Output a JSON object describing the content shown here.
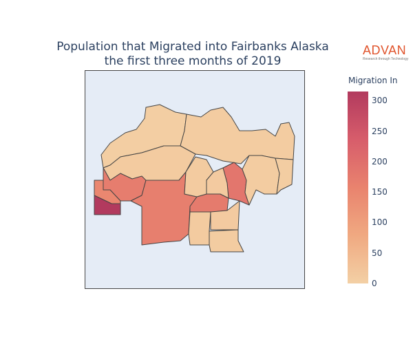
{
  "title_line1": "Population that Migrated into Fairbanks Alaska",
  "title_line2": "the first three months of 2019",
  "logo": {
    "word": "ADVAN",
    "tagline": "Research through Technology"
  },
  "colorbar": {
    "title": "Migration In",
    "ticks": [
      "0",
      "50",
      "100",
      "150",
      "200",
      "250",
      "300"
    ],
    "min": 0,
    "max": 315,
    "colors": [
      "#f3d0a5",
      "#f0a981",
      "#e9836e",
      "#d75d6b",
      "#b23a5e"
    ]
  },
  "regions": [
    {
      "name": "north-central-tract",
      "value": 5
    },
    {
      "name": "north-east-tract",
      "value": 8
    },
    {
      "name": "west-tract",
      "value": 10
    },
    {
      "name": "west-river-tract",
      "value": 170
    },
    {
      "name": "far-west-tract",
      "value": 150
    },
    {
      "name": "southwest-tract",
      "value": 315
    },
    {
      "name": "central-large-tract",
      "value": 165
    },
    {
      "name": "central-band-tract",
      "value": 175
    },
    {
      "name": "east-river-tract",
      "value": 185
    },
    {
      "name": "center-small-tract-a",
      "value": 10
    },
    {
      "name": "center-small-tract-b",
      "value": 12
    },
    {
      "name": "east-tract",
      "value": 8
    },
    {
      "name": "far-east-tract",
      "value": 6
    },
    {
      "name": "south-tract-a",
      "value": 10
    },
    {
      "name": "south-tract-b",
      "value": 12
    },
    {
      "name": "south-tract-c",
      "value": 8
    }
  ]
}
